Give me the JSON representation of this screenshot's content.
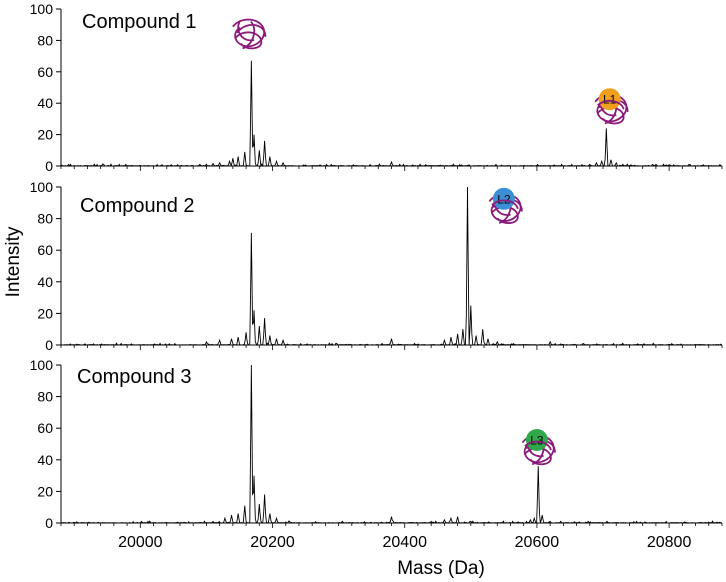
{
  "chart_data": {
    "type": "line",
    "xlabel": "Mass (Da)",
    "ylabel": "Intensity",
    "xlim": [
      19880,
      20880
    ],
    "x_ticks": [
      20000,
      20200,
      20400,
      20600,
      20800
    ],
    "grid": false,
    "shared_x_axis": true,
    "line_color": "#000000",
    "panels": [
      {
        "title": "Compound 1",
        "ylim": [
          0,
          100
        ],
        "y_ticks": [
          0,
          20,
          40,
          60,
          80,
          100
        ],
        "annotations": [
          {
            "kind": "protein",
            "at_x": 20165,
            "at_y": 84
          },
          {
            "kind": "protein-ligand",
            "label": "L1",
            "circle_color": "#f0a01e",
            "at_x": 20710,
            "at_y": 40
          }
        ],
        "peaks": [
          {
            "x": 19840,
            "y": 1.5
          },
          {
            "x": 20090,
            "y": 1
          },
          {
            "x": 20110,
            "y": 1.5
          },
          {
            "x": 20120,
            "y": 2
          },
          {
            "x": 20135,
            "y": 3
          },
          {
            "x": 20140,
            "y": 5
          },
          {
            "x": 20148,
            "y": 6
          },
          {
            "x": 20158,
            "y": 9
          },
          {
            "x": 20168,
            "y": 67
          },
          {
            "x": 20172,
            "y": 20
          },
          {
            "x": 20180,
            "y": 10
          },
          {
            "x": 20188,
            "y": 16
          },
          {
            "x": 20196,
            "y": 6
          },
          {
            "x": 20206,
            "y": 3
          },
          {
            "x": 20216,
            "y": 2
          },
          {
            "x": 20380,
            "y": 2.5
          },
          {
            "x": 20680,
            "y": 1
          },
          {
            "x": 20690,
            "y": 2
          },
          {
            "x": 20698,
            "y": 3
          },
          {
            "x": 20705,
            "y": 24
          },
          {
            "x": 20712,
            "y": 4
          },
          {
            "x": 20720,
            "y": 2
          },
          {
            "x": 20730,
            "y": 1
          },
          {
            "x": 20780,
            "y": 1
          },
          {
            "x": 20830,
            "y": 1
          }
        ]
      },
      {
        "title": "Compound 2",
        "ylim": [
          0,
          100
        ],
        "y_ticks": [
          0,
          20,
          40,
          60,
          80,
          100
        ],
        "annotations": [
          {
            "kind": "protein-ligand",
            "label": "L2",
            "circle_color": "#3a8fd6",
            "at_x": 20550,
            "at_y": 90
          }
        ],
        "peaks": [
          {
            "x": 20100,
            "y": 2
          },
          {
            "x": 20120,
            "y": 3
          },
          {
            "x": 20138,
            "y": 4
          },
          {
            "x": 20148,
            "y": 5
          },
          {
            "x": 20160,
            "y": 8
          },
          {
            "x": 20168,
            "y": 71
          },
          {
            "x": 20172,
            "y": 22
          },
          {
            "x": 20180,
            "y": 12
          },
          {
            "x": 20188,
            "y": 17
          },
          {
            "x": 20196,
            "y": 6
          },
          {
            "x": 20206,
            "y": 4
          },
          {
            "x": 20216,
            "y": 3
          },
          {
            "x": 20380,
            "y": 4
          },
          {
            "x": 20460,
            "y": 3
          },
          {
            "x": 20470,
            "y": 5
          },
          {
            "x": 20480,
            "y": 7
          },
          {
            "x": 20488,
            "y": 10
          },
          {
            "x": 20495,
            "y": 100
          },
          {
            "x": 20500,
            "y": 25
          },
          {
            "x": 20508,
            "y": 6
          },
          {
            "x": 20518,
            "y": 10
          },
          {
            "x": 20526,
            "y": 4
          },
          {
            "x": 20540,
            "y": 2
          },
          {
            "x": 20620,
            "y": 2
          }
        ]
      },
      {
        "title": "Compound 3",
        "ylim": [
          0,
          100
        ],
        "y_ticks": [
          0,
          20,
          40,
          60,
          80,
          100
        ],
        "annotations": [
          {
            "kind": "protein-ligand",
            "label": "L3",
            "circle_color": "#2ea84a",
            "at_x": 20600,
            "at_y": 50
          }
        ],
        "peaks": [
          {
            "x": 20110,
            "y": 1
          },
          {
            "x": 20128,
            "y": 3
          },
          {
            "x": 20138,
            "y": 5
          },
          {
            "x": 20148,
            "y": 6
          },
          {
            "x": 20158,
            "y": 11
          },
          {
            "x": 20168,
            "y": 100
          },
          {
            "x": 20172,
            "y": 30
          },
          {
            "x": 20180,
            "y": 12
          },
          {
            "x": 20188,
            "y": 18
          },
          {
            "x": 20196,
            "y": 6
          },
          {
            "x": 20206,
            "y": 3
          },
          {
            "x": 20380,
            "y": 4
          },
          {
            "x": 20460,
            "y": 2
          },
          {
            "x": 20470,
            "y": 3
          },
          {
            "x": 20480,
            "y": 4
          },
          {
            "x": 20500,
            "y": 1
          },
          {
            "x": 20590,
            "y": 2
          },
          {
            "x": 20596,
            "y": 3
          },
          {
            "x": 20602,
            "y": 36
          },
          {
            "x": 20608,
            "y": 5
          },
          {
            "x": 20620,
            "y": 1
          }
        ]
      }
    ]
  }
}
